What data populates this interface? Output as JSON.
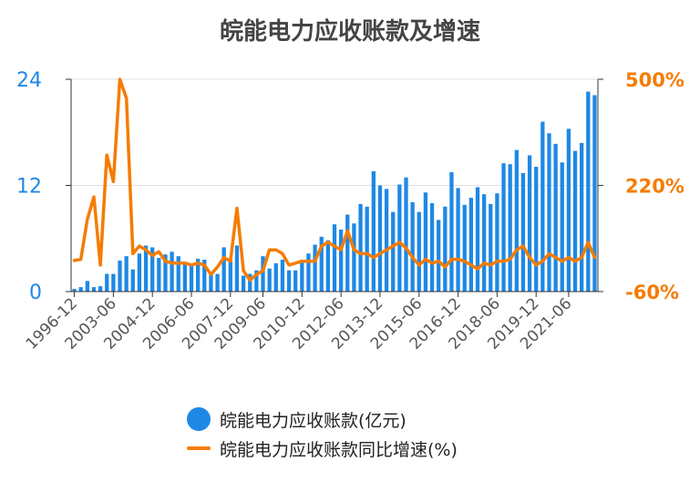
{
  "chart_data": {
    "title": "皖能电力应收账款及增速",
    "type": "bar+line",
    "colors": {
      "bar": "#1e88e5",
      "line": "#f57c00",
      "left_axis": "#1e88e5",
      "right_axis": "#f57c00",
      "grid": "#e0e0e0",
      "title": "#444444"
    },
    "y_left": {
      "ticks": [
        "0",
        "12",
        "24"
      ],
      "range": [
        0,
        24
      ]
    },
    "y_right": {
      "ticks": [
        "-60%",
        "220%",
        "500%"
      ],
      "range": [
        -60,
        500
      ]
    },
    "x_tick_labels": [
      "1996-12",
      "2003-06",
      "2004-12",
      "2006-06",
      "2007-12",
      "2009-06",
      "2010-12",
      "2012-06",
      "2013-12",
      "2015-06",
      "2016-12",
      "2018-06",
      "2019-12",
      "2021-06"
    ],
    "series": [
      {
        "name": "皖能电力应收账款(亿元)",
        "type": "bar",
        "values": [
          0.3,
          0.5,
          1.2,
          0.5,
          0.6,
          2.0,
          2.0,
          3.5,
          4.0,
          2.5,
          4.3,
          5.2,
          5.0,
          3.8,
          4.2,
          4.5,
          4.0,
          3.3,
          3.0,
          3.7,
          3.6,
          2.0,
          2.0,
          5.0,
          3.5,
          5.2,
          1.8,
          2.0,
          2.4,
          4.0,
          2.6,
          3.2,
          3.6,
          2.4,
          2.4,
          3.6,
          4.3,
          5.3,
          6.2,
          5.8,
          7.6,
          7.0,
          8.7,
          7.7,
          9.9,
          9.6,
          13.6,
          12.0,
          11.6,
          9.0,
          12.1,
          12.9,
          10.1,
          9.0,
          11.2,
          10.0,
          8.1,
          9.6,
          13.5,
          11.7,
          9.8,
          10.6,
          11.8,
          11.0,
          9.9,
          11.1,
          14.5,
          14.4,
          16.0,
          13.4,
          15.4,
          14.1,
          19.2,
          17.9,
          16.7,
          14.6,
          18.4,
          15.9,
          16.8,
          22.6,
          22.2
        ]
      },
      {
        "name": "皖能电力应收账款同比增速(%)",
        "type": "line",
        "values": [
          22,
          25,
          130,
          190,
          10,
          300,
          230,
          500,
          450,
          40,
          60,
          50,
          35,
          45,
          20,
          15,
          15,
          15,
          10,
          15,
          10,
          -15,
          5,
          30,
          20,
          160,
          -5,
          -30,
          -15,
          -5,
          50,
          50,
          40,
          10,
          15,
          20,
          20,
          20,
          60,
          70,
          60,
          50,
          100,
          50,
          40,
          40,
          30,
          40,
          50,
          60,
          70,
          55,
          30,
          10,
          25,
          15,
          20,
          5,
          25,
          25,
          20,
          10,
          0,
          15,
          10,
          20,
          20,
          25,
          50,
          60,
          30,
          10,
          20,
          40,
          30,
          20,
          30,
          20,
          30,
          70,
          30
        ]
      }
    ]
  },
  "legend": {
    "bar_label": "皖能电力应收账款(亿元)",
    "line_label": "皖能电力应收账款同比增速(%)"
  }
}
